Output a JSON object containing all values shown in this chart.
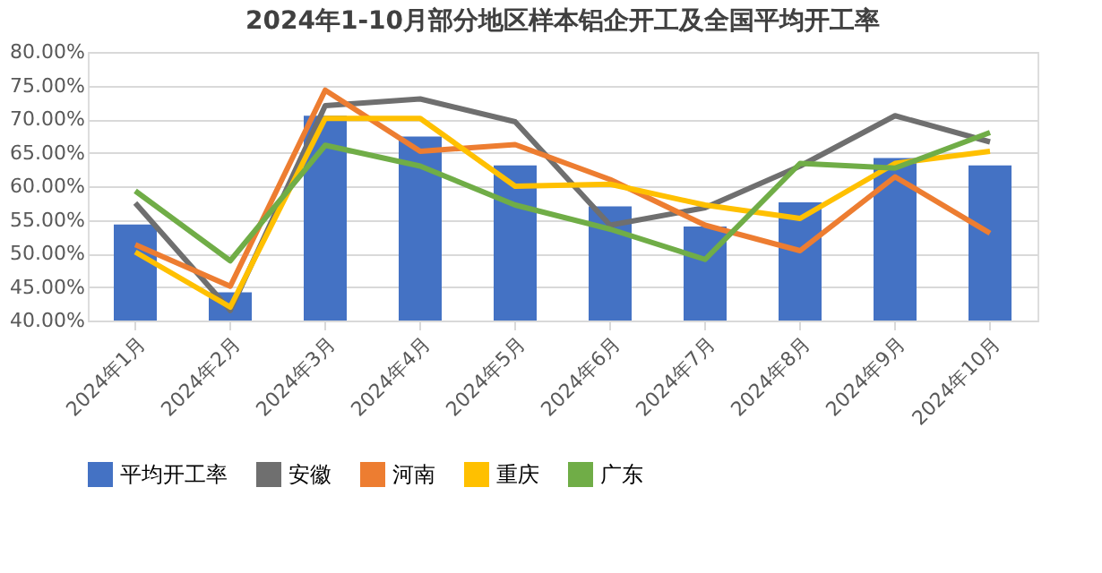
{
  "chart_data": {
    "type": "bar",
    "title": "2024年1-10月部分地区样本铝企开工及全国平均开工率",
    "categories": [
      "2024年1月",
      "2024年2月",
      "2024年3月",
      "2024年4月",
      "2024年5月",
      "2024年6月",
      "2024年7月",
      "2024年8月",
      "2024年9月",
      "2024年10月"
    ],
    "series": [
      {
        "name": "平均开工率",
        "color": "#4472c4",
        "values": [
          54.3,
          44.2,
          70.5,
          67.4,
          63.1,
          57.0,
          54.0,
          57.6,
          64.2,
          63.1
        ]
      },
      {
        "name": "安徽",
        "type": "line",
        "color": "#6f6f6f",
        "values": [
          57.5,
          41.5,
          72.0,
          73.0,
          69.6,
          54.2,
          56.8,
          63.0,
          70.5,
          66.6
        ]
      },
      {
        "name": "河南",
        "type": "line",
        "color": "#ed7d31",
        "values": [
          51.3,
          45.1,
          74.3,
          65.2,
          66.2,
          61.0,
          54.2,
          50.4,
          61.4,
          53.0
        ]
      },
      {
        "name": "重庆",
        "type": "line",
        "color": "#ffc000",
        "values": [
          50.2,
          42.0,
          70.1,
          70.1,
          60.0,
          60.3,
          57.2,
          55.2,
          63.4,
          65.2
        ]
      },
      {
        "name": "广东",
        "type": "line",
        "color": "#70ad47",
        "values": [
          59.3,
          48.9,
          66.1,
          63.0,
          57.2,
          53.6,
          49.1,
          63.4,
          62.7,
          68.0
        ]
      }
    ],
    "ylim": [
      40,
      80
    ],
    "yticks": [
      {
        "value": 40,
        "label": "40.00%"
      },
      {
        "value": 45,
        "label": "45.00%"
      },
      {
        "value": 50,
        "label": "50.00%"
      },
      {
        "value": 55,
        "label": "55.00%"
      },
      {
        "value": 60,
        "label": "60.00%"
      },
      {
        "value": 65,
        "label": "65.00%"
      },
      {
        "value": 70,
        "label": "70.00%"
      },
      {
        "value": 75,
        "label": "75.00%"
      },
      {
        "value": 80,
        "label": "80.00%"
      }
    ],
    "grid": "y",
    "legend": "bottom"
  }
}
